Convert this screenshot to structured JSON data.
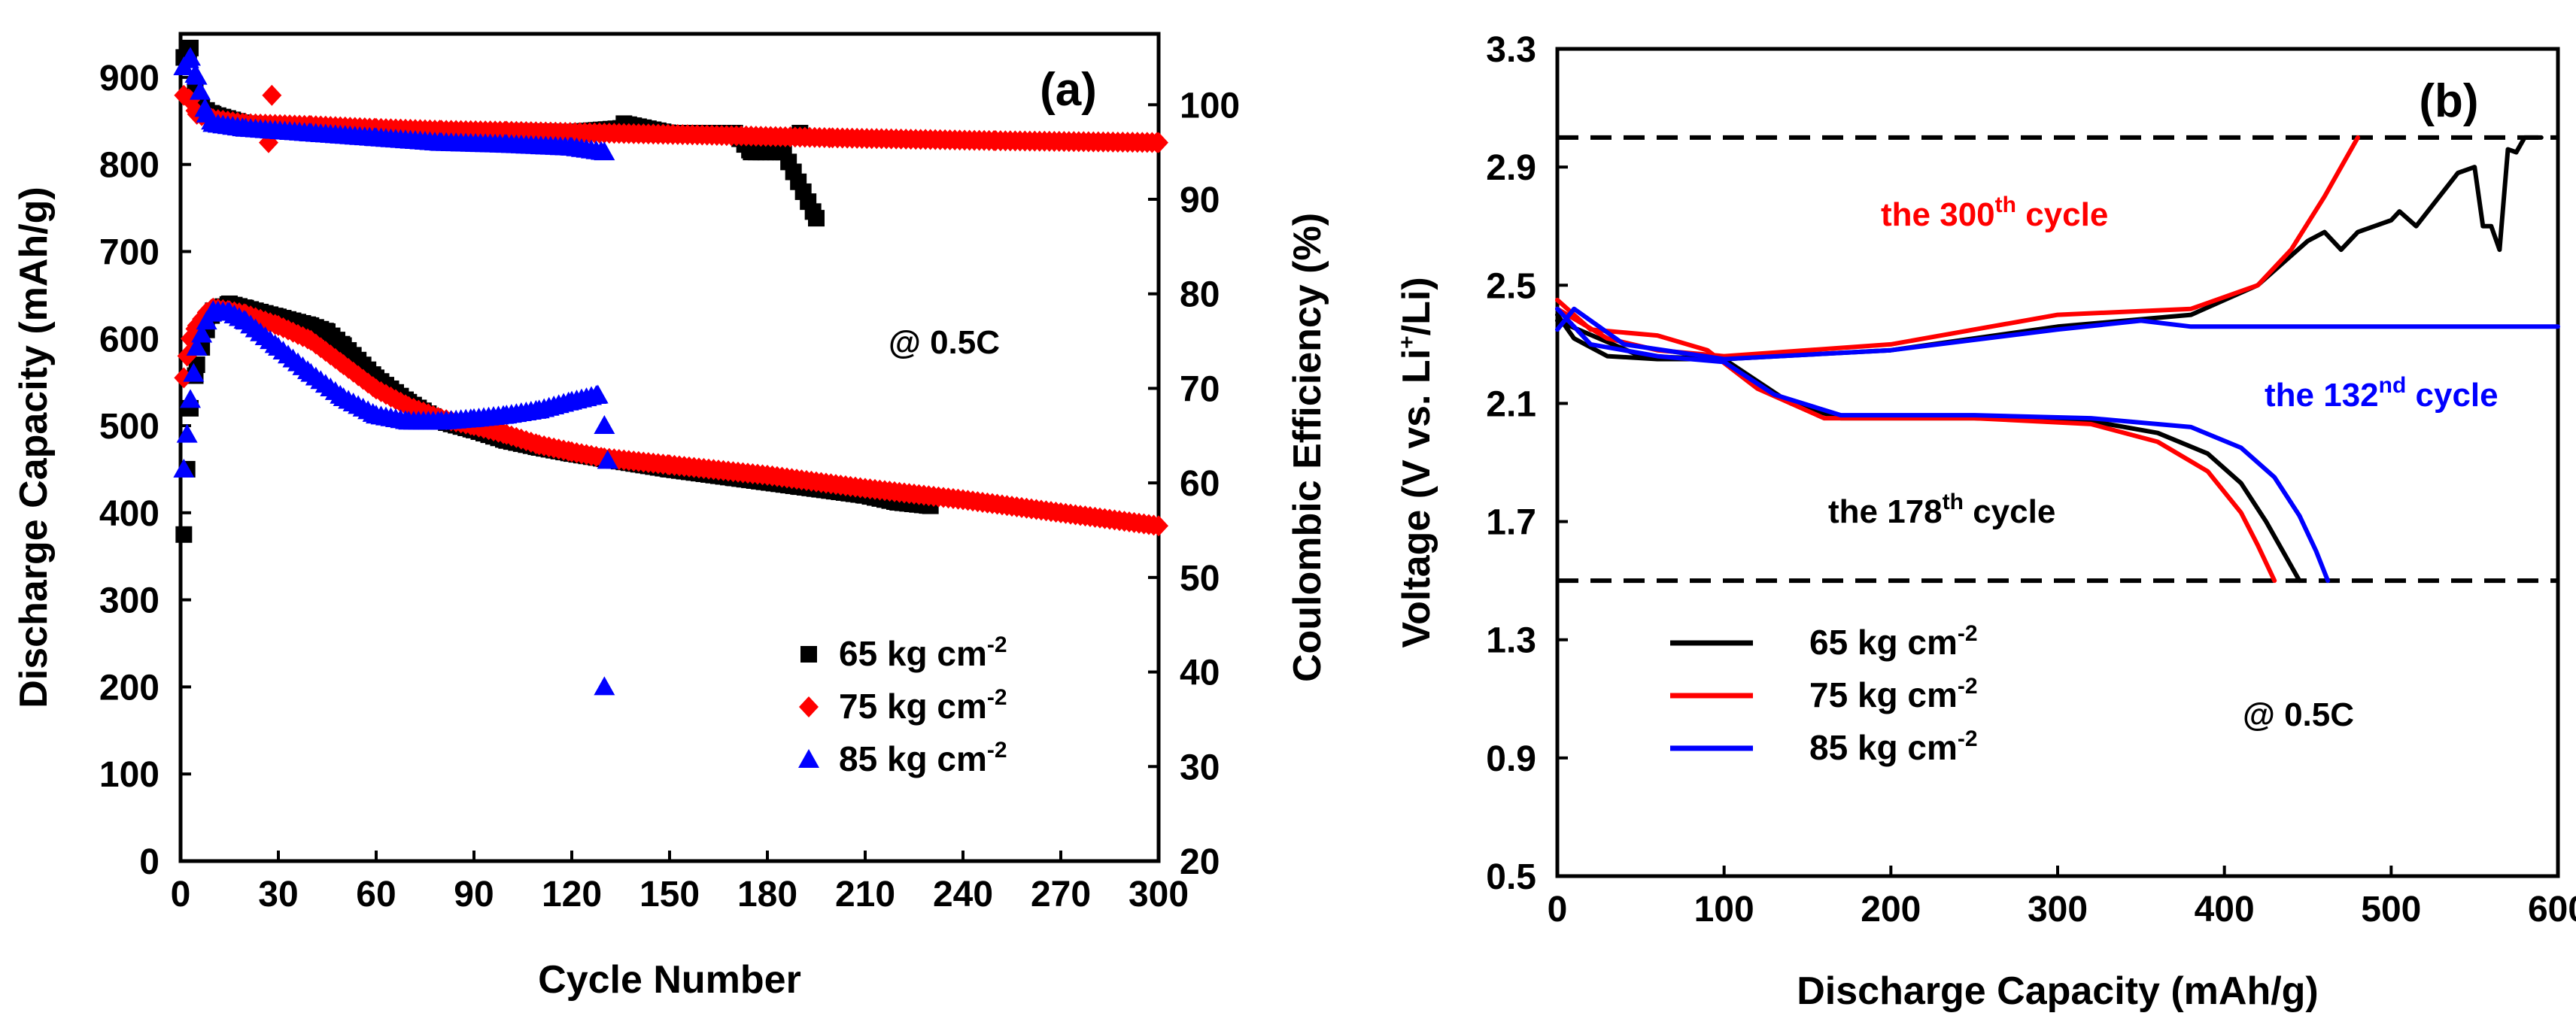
{
  "chart_data": [
    {
      "type": "scatter",
      "panel_label": "(a)",
      "xlabel": "Cycle Number",
      "ylabel": "Discharge Capacity (mAh/g)",
      "y2label": "Coulombic Efficiency (%)",
      "xlim": [
        0,
        300
      ],
      "ylim": [
        0,
        950
      ],
      "y2lim": [
        20,
        107.5
      ],
      "xticks": [
        0,
        30,
        60,
        90,
        120,
        150,
        180,
        210,
        240,
        270,
        300
      ],
      "yticks": [
        0,
        100,
        200,
        300,
        400,
        500,
        600,
        700,
        800,
        900
      ],
      "y2ticks": [
        20,
        30,
        40,
        50,
        60,
        70,
        80,
        90,
        100
      ],
      "annotation": "@ 0.5C",
      "series": [
        {
          "name": "65 kg cm",
          "superscript": "-2",
          "color": "#000000",
          "marker": "square",
          "capacity": [
            [
              1,
              375
            ],
            [
              2,
              450
            ],
            [
              3,
              520
            ],
            [
              5,
              570
            ],
            [
              8,
              610
            ],
            [
              10,
              632
            ],
            [
              15,
              640
            ],
            [
              20,
              635
            ],
            [
              30,
              625
            ],
            [
              40,
              615
            ],
            [
              45,
              608
            ],
            [
              50,
              592
            ],
            [
              60,
              555
            ],
            [
              70,
              527
            ],
            [
              80,
              505
            ],
            [
              90,
              495
            ],
            [
              100,
              483
            ],
            [
              110,
              475
            ],
            [
              120,
              468
            ],
            [
              130,
              462
            ],
            [
              150,
              450
            ],
            [
              170,
              440
            ],
            [
              190,
              430
            ],
            [
              210,
              420
            ],
            [
              220,
              412
            ],
            [
              230,
              408
            ]
          ],
          "efficiency": [
            [
              1,
              105
            ],
            [
              3,
              106
            ],
            [
              5,
              100
            ],
            [
              10,
              99
            ],
            [
              20,
              98
            ],
            [
              40,
              97.5
            ],
            [
              60,
              97.3
            ],
            [
              80,
              97.2
            ],
            [
              100,
              97.2
            ],
            [
              120,
              97.1
            ],
            [
              135,
              97.5
            ],
            [
              136,
              98
            ],
            [
              150,
              97
            ],
            [
              170,
              97
            ],
            [
              175,
              95
            ],
            [
              185,
              95
            ],
            [
              190,
              97
            ],
            [
              195,
              88
            ]
          ]
        },
        {
          "name": "75 kg cm",
          "superscript": "-2",
          "color": "#ff0000",
          "marker": "diamond",
          "capacity": [
            [
              1,
              555
            ],
            [
              2,
              580
            ],
            [
              3,
              600
            ],
            [
              5,
              615
            ],
            [
              8,
              630
            ],
            [
              10,
              635
            ],
            [
              15,
              632
            ],
            [
              20,
              628
            ],
            [
              30,
              615
            ],
            [
              40,
              598
            ],
            [
              50,
              570
            ],
            [
              60,
              542
            ],
            [
              70,
              522
            ],
            [
              80,
              508
            ],
            [
              90,
              500
            ],
            [
              100,
              490
            ],
            [
              110,
              478
            ],
            [
              120,
              470
            ],
            [
              130,
              463
            ],
            [
              150,
              455
            ],
            [
              180,
              443
            ],
            [
              210,
              428
            ],
            [
              240,
              415
            ],
            [
              270,
              400
            ],
            [
              300,
              385
            ]
          ],
          "efficiency": [
            [
              1,
              101
            ],
            [
              3,
              100.5
            ],
            [
              5,
              99
            ],
            [
              10,
              98.5
            ],
            [
              20,
              98
            ],
            [
              27,
              96
            ],
            [
              28,
              101
            ],
            [
              40,
              97.8
            ],
            [
              60,
              97.5
            ],
            [
              80,
              97.3
            ],
            [
              100,
              97.2
            ],
            [
              130,
              97
            ],
            [
              160,
              96.8
            ],
            [
              200,
              96.5
            ],
            [
              250,
              96.2
            ],
            [
              300,
              96
            ]
          ]
        },
        {
          "name": "85 kg cm",
          "superscript": "-2",
          "color": "#0000ff",
          "marker": "triangle",
          "capacity": [
            [
              1,
              450
            ],
            [
              2,
              490
            ],
            [
              3,
              530
            ],
            [
              4,
              560
            ],
            [
              5,
              590
            ],
            [
              8,
              620
            ],
            [
              10,
              632
            ],
            [
              15,
              630
            ],
            [
              20,
              620
            ],
            [
              30,
              590
            ],
            [
              40,
              560
            ],
            [
              50,
              532
            ],
            [
              60,
              512
            ],
            [
              70,
              505
            ],
            [
              80,
              505
            ],
            [
              90,
              508
            ],
            [
              100,
              512
            ],
            [
              110,
              518
            ],
            [
              120,
              528
            ],
            [
              128,
              535
            ],
            [
              130,
              500
            ],
            [
              131,
              460
            ],
            [
              130,
              200
            ]
          ],
          "efficiency": [
            [
              1,
              104
            ],
            [
              3,
              105
            ],
            [
              5,
              103
            ],
            [
              8,
              99
            ],
            [
              10,
              98
            ],
            [
              20,
              97.5
            ],
            [
              40,
              97
            ],
            [
              60,
              96.5
            ],
            [
              80,
              96
            ],
            [
              100,
              95.8
            ],
            [
              120,
              95.5
            ],
            [
              130,
              95
            ]
          ]
        }
      ]
    },
    {
      "type": "line",
      "panel_label": "(b)",
      "xlabel": "Discharge Capacity (mAh/g)",
      "ylabel_parts": [
        "Voltage (V vs. Li",
        "+",
        "/Li)"
      ],
      "xlim": [
        0,
        600
      ],
      "ylim": [
        0.5,
        3.3
      ],
      "xticks": [
        0,
        100,
        200,
        300,
        400,
        500,
        600
      ],
      "yticks": [
        0.5,
        0.9,
        1.3,
        1.7,
        2.1,
        2.5,
        2.9,
        3.3
      ],
      "cutoff_lines": [
        3.0,
        1.5
      ],
      "annotation": "@ 0.5C",
      "cycle_labels": [
        {
          "prefix": "the 300",
          "sup": "th",
          "suffix": " cycle",
          "color": "#ff0000"
        },
        {
          "prefix": "the 132",
          "sup": "nd",
          "suffix": " cycle",
          "color": "#0000ff"
        },
        {
          "prefix": "the 178",
          "sup": "th",
          "suffix": " cycle",
          "color": "#000000"
        }
      ],
      "series": [
        {
          "name": "65 kg cm",
          "superscript": "-2",
          "color": "#000000",
          "discharge": [
            [
              0,
              2.4
            ],
            [
              10,
              2.32
            ],
            [
              30,
              2.26
            ],
            [
              60,
              2.25
            ],
            [
              100,
              2.25
            ],
            [
              140,
              2.1
            ],
            [
              170,
              2.05
            ],
            [
              250,
              2.05
            ],
            [
              320,
              2.04
            ],
            [
              360,
              2.0
            ],
            [
              390,
              1.93
            ],
            [
              410,
              1.83
            ],
            [
              425,
              1.7
            ],
            [
              435,
              1.6
            ],
            [
              445,
              1.5
            ]
          ],
          "charge": [
            [
              0,
              2.38
            ],
            [
              50,
              2.26
            ],
            [
              100,
              2.25
            ],
            [
              200,
              2.28
            ],
            [
              300,
              2.36
            ],
            [
              380,
              2.4
            ],
            [
              420,
              2.5
            ],
            [
              440,
              2.6
            ],
            [
              450,
              2.65
            ],
            [
              460,
              2.68
            ],
            [
              470,
              2.62
            ],
            [
              480,
              2.68
            ],
            [
              500,
              2.72
            ],
            [
              505,
              2.75
            ],
            [
              515,
              2.7
            ],
            [
              540,
              2.88
            ],
            [
              550,
              2.9
            ],
            [
              555,
              2.7
            ],
            [
              560,
              2.7
            ],
            [
              565,
              2.62
            ],
            [
              570,
              2.96
            ],
            [
              575,
              2.95
            ],
            [
              580,
              3.0
            ],
            [
              590,
              3.0
            ]
          ]
        },
        {
          "name": "75 kg cm",
          "superscript": "-2",
          "color": "#ff0000",
          "discharge": [
            [
              0,
              2.45
            ],
            [
              20,
              2.35
            ],
            [
              60,
              2.33
            ],
            [
              90,
              2.28
            ],
            [
              120,
              2.15
            ],
            [
              160,
              2.05
            ],
            [
              250,
              2.05
            ],
            [
              320,
              2.03
            ],
            [
              360,
              1.97
            ],
            [
              390,
              1.87
            ],
            [
              410,
              1.73
            ],
            [
              420,
              1.62
            ],
            [
              430,
              1.5
            ]
          ],
          "charge": [
            [
              0,
              2.42
            ],
            [
              30,
              2.32
            ],
            [
              60,
              2.28
            ],
            [
              100,
              2.26
            ],
            [
              200,
              2.3
            ],
            [
              300,
              2.4
            ],
            [
              380,
              2.42
            ],
            [
              420,
              2.5
            ],
            [
              440,
              2.62
            ],
            [
              460,
              2.8
            ],
            [
              470,
              2.9
            ],
            [
              480,
              3.0
            ]
          ]
        },
        {
          "name": "85 kg cm",
          "superscript": "-2",
          "color": "#0000ff",
          "discharge": [
            [
              0,
              2.42
            ],
            [
              20,
              2.3
            ],
            [
              60,
              2.26
            ],
            [
              100,
              2.24
            ],
            [
              130,
              2.13
            ],
            [
              170,
              2.06
            ],
            [
              250,
              2.06
            ],
            [
              320,
              2.05
            ],
            [
              380,
              2.02
            ],
            [
              410,
              1.95
            ],
            [
              430,
              1.85
            ],
            [
              445,
              1.72
            ],
            [
              455,
              1.6
            ],
            [
              462,
              1.5
            ]
          ],
          "charge": [
            [
              0,
              2.35
            ],
            [
              10,
              2.42
            ],
            [
              40,
              2.3
            ],
            [
              100,
              2.25
            ],
            [
              200,
              2.28
            ],
            [
              300,
              2.35
            ],
            [
              350,
              2.38
            ],
            [
              380,
              2.36
            ],
            [
              400,
              2.36
            ],
            [
              500,
              2.36
            ],
            [
              600,
              2.36
            ]
          ]
        }
      ]
    }
  ]
}
